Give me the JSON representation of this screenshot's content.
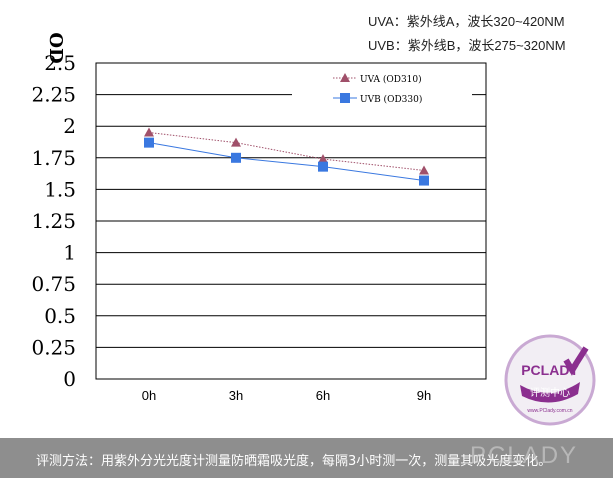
{
  "chart_data": {
    "type": "line",
    "ylabel": "OD",
    "categories": [
      "0h",
      "3h",
      "6h",
      "9h"
    ],
    "yticks": [
      "0",
      "0.25",
      "0.5",
      "0.75",
      "1",
      "1.25",
      "1.5",
      "1.75",
      "2",
      "2.25",
      "2.5"
    ],
    "ylim": [
      0,
      2.5
    ],
    "grid": true,
    "legend_position": "top-right",
    "series": [
      {
        "name": "UVA (OD310)",
        "values": [
          1.95,
          1.87,
          1.74,
          1.65
        ],
        "color": "#a0506a",
        "marker": "triangle",
        "line": "dotted"
      },
      {
        "name": "UVB (OD330)",
        "values": [
          1.87,
          1.75,
          1.68,
          1.57
        ],
        "color": "#3a78e0",
        "marker": "square",
        "line": "solid"
      }
    ]
  },
  "notes": {
    "uva": "UVA：紫外线A，波长320~420NM",
    "uvb": "UVB：紫外线B，波长275~320NM"
  },
  "footer": {
    "text": "评测方法：用紫外分光光度计测量防晒霜吸光度，每隔3小时测一次，测量其吸光度变化。",
    "brand": "PCLADY"
  },
  "badge": {
    "title": "PCLADY",
    "subtitle": "评测中心",
    "url": "www.PClady.com.cn"
  }
}
